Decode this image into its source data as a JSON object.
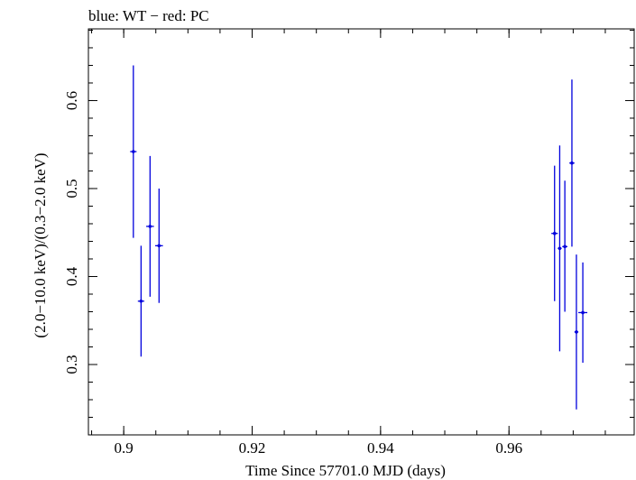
{
  "colors": {
    "wt": "#0000dd",
    "pc": "#dd0000",
    "axis": "#000000"
  },
  "chart_data": {
    "type": "scatter",
    "title": "blue: WT − red: PC",
    "xlabel": "Time Since 57701.0 MJD (days)",
    "ylabel": "(2.0−10.0 keV)/(0.3−2.0 keV)",
    "xlim": [
      0.8945,
      0.9795
    ],
    "ylim": [
      0.22,
      0.6815
    ],
    "x_ticks": [
      0.9,
      0.92,
      0.94,
      0.96
    ],
    "x_tick_labels": [
      "0.9",
      "0.92",
      "0.94",
      "0.96"
    ],
    "y_ticks": [
      0.3,
      0.4,
      0.5,
      0.6
    ],
    "y_tick_labels": [
      "0.3",
      "0.4",
      "0.5",
      "0.6"
    ],
    "x_minor_step": 0.005,
    "y_minor_step": 0.02,
    "grid": false,
    "series": [
      {
        "name": "WT",
        "color": "#0000dd",
        "points": [
          {
            "x": 0.9015,
            "y": 0.542,
            "y_lo": 0.444,
            "y_hi": 0.64,
            "x_err": 0.0005
          },
          {
            "x": 0.9027,
            "y": 0.372,
            "y_lo": 0.309,
            "y_hi": 0.435,
            "x_err": 0.0005
          },
          {
            "x": 0.9041,
            "y": 0.457,
            "y_lo": 0.377,
            "y_hi": 0.537,
            "x_err": 0.0006
          },
          {
            "x": 0.9055,
            "y": 0.435,
            "y_lo": 0.37,
            "y_hi": 0.5,
            "x_err": 0.0006
          },
          {
            "x": 0.9671,
            "y": 0.449,
            "y_lo": 0.372,
            "y_hi": 0.526,
            "x_err": 0.0005
          },
          {
            "x": 0.9679,
            "y": 0.432,
            "y_lo": 0.315,
            "y_hi": 0.549,
            "x_err": 0.0003
          },
          {
            "x": 0.9687,
            "y": 0.434,
            "y_lo": 0.36,
            "y_hi": 0.509,
            "x_err": 0.0004
          },
          {
            "x": 0.9698,
            "y": 0.529,
            "y_lo": 0.434,
            "y_hi": 0.624,
            "x_err": 0.0004
          },
          {
            "x": 0.9705,
            "y": 0.337,
            "y_lo": 0.249,
            "y_hi": 0.425,
            "x_err": 0.0003
          },
          {
            "x": 0.9715,
            "y": 0.359,
            "y_lo": 0.302,
            "y_hi": 0.416,
            "x_err": 0.0007
          }
        ]
      },
      {
        "name": "PC",
        "color": "#dd0000",
        "points": []
      }
    ]
  }
}
